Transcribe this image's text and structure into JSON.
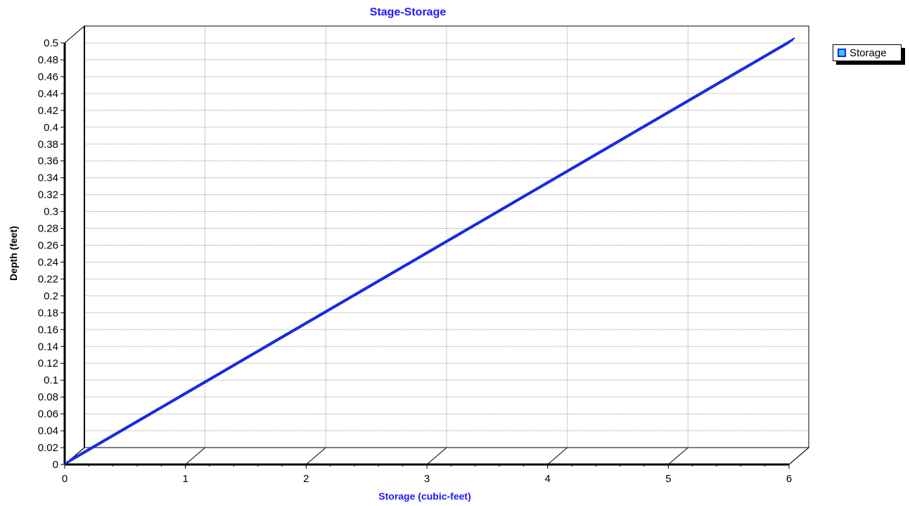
{
  "chart_data": {
    "type": "line",
    "title": "Stage-Storage",
    "xlabel": "Storage (cubic-feet)",
    "ylabel": "Depth  (feet)",
    "xlim": [
      0,
      6
    ],
    "ylim": [
      0,
      0.5
    ],
    "x_ticks": [
      "0",
      "1",
      "2",
      "3",
      "4",
      "5",
      "6"
    ],
    "y_ticks": [
      "0",
      "0.02",
      "0.04",
      "0.06",
      "0.08",
      "0.1",
      "0.12",
      "0.14",
      "0.16",
      "0.18",
      "0.2",
      "0.22",
      "0.24",
      "0.26",
      "0.28",
      "0.3",
      "0.32",
      "0.34",
      "0.36",
      "0.38",
      "0.4",
      "0.42",
      "0.44",
      "0.46",
      "0.48",
      "0.5"
    ],
    "grid": true,
    "legend_position": "top-right",
    "series": [
      {
        "name": "Storage",
        "x": [
          0,
          0.6,
          1.2,
          1.8,
          2.4,
          3.0,
          3.6,
          4.2,
          4.8,
          5.4,
          6.0
        ],
        "y": [
          0,
          0.05,
          0.1,
          0.15,
          0.2,
          0.25,
          0.3,
          0.35,
          0.4,
          0.45,
          0.5
        ]
      }
    ],
    "colors": {
      "title": "#1a1aff",
      "series_line": "#1428e0",
      "series_fill": "#33ccff",
      "grid": "#9a9a9a"
    }
  }
}
